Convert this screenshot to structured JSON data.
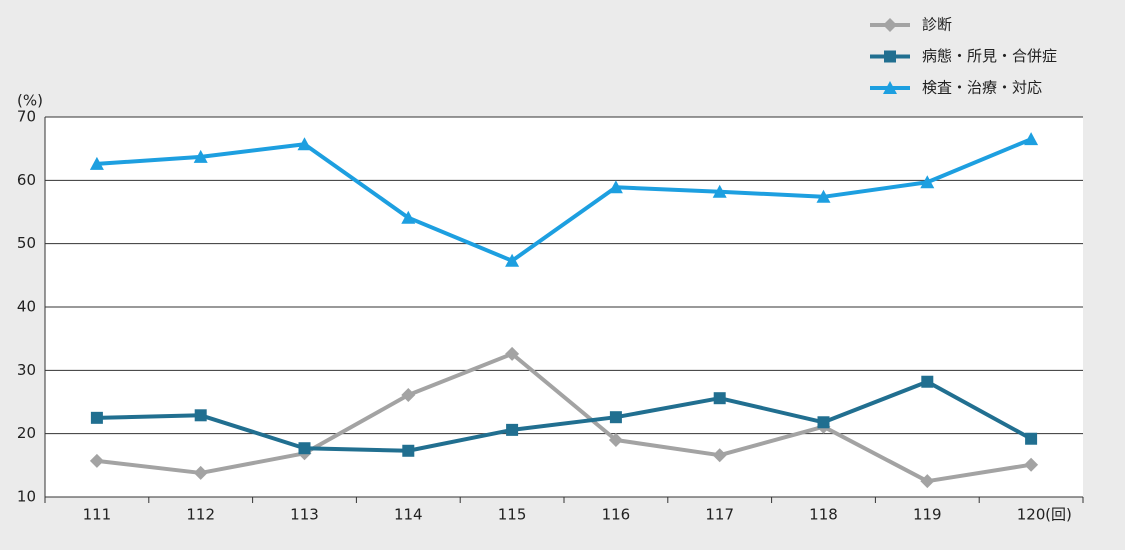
{
  "chart_data": {
    "type": "line",
    "y_unit": "(%)",
    "x_unit": "(回)",
    "categories": [
      "111",
      "112",
      "113",
      "114",
      "115",
      "116",
      "117",
      "118",
      "119",
      "120"
    ],
    "series": [
      {
        "name": "診断",
        "color": "#a3a3a3",
        "marker": "diamond",
        "values": [
          15.7,
          13.8,
          16.9,
          26.1,
          32.6,
          19.0,
          16.6,
          21.1,
          12.5,
          15.1
        ]
      },
      {
        "name": "病態・所見・合併症",
        "color": "#216f90",
        "marker": "square",
        "values": [
          22.5,
          22.9,
          17.7,
          17.3,
          20.6,
          22.6,
          25.6,
          21.8,
          28.2,
          19.2
        ]
      },
      {
        "name": "検査・治療・対応",
        "color": "#1d9fe0",
        "marker": "triangle",
        "values": [
          62.6,
          63.7,
          65.7,
          54.1,
          47.3,
          58.9,
          58.2,
          57.4,
          59.7,
          66.5
        ]
      }
    ],
    "ylim": [
      10,
      70
    ],
    "yticks": [
      10,
      20,
      30,
      40,
      50,
      60,
      70
    ],
    "grid": true,
    "legend": "top-right"
  }
}
